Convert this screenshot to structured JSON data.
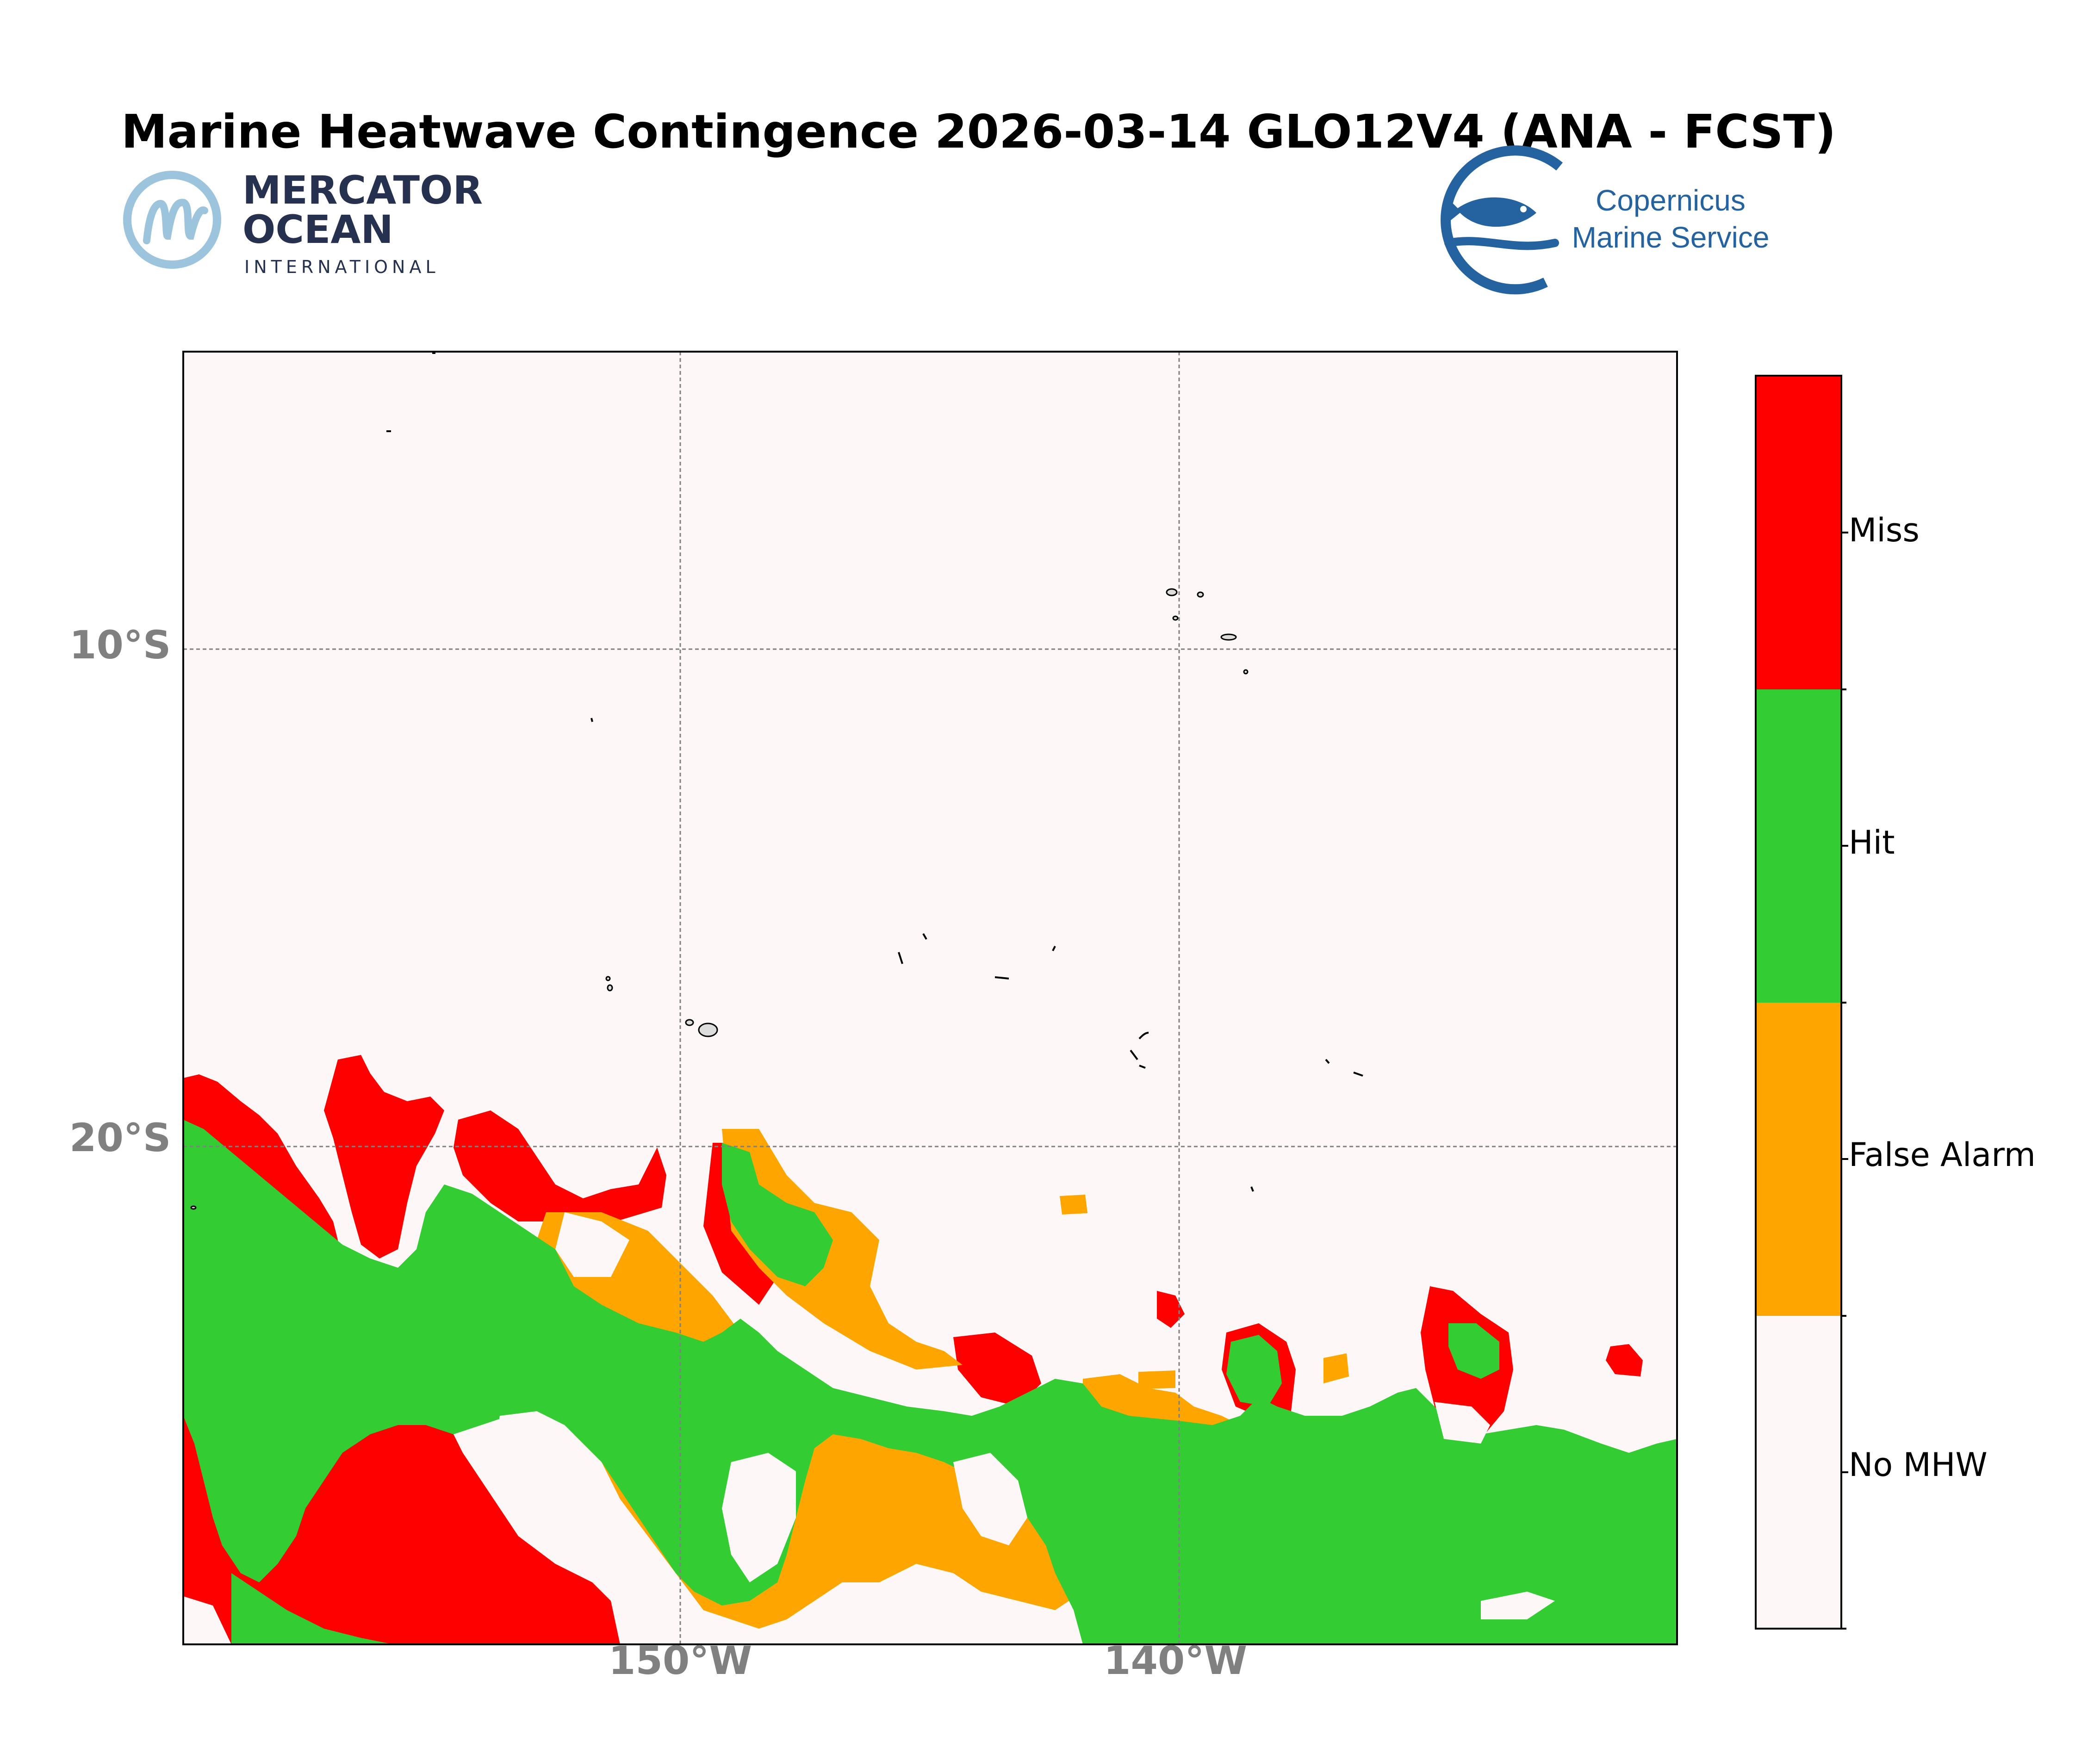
{
  "title": "Marine Heatwave Contingence 2026-03-14 GLO12V4 (ANA - FCST)",
  "logos": {
    "mercator": {
      "line1": "MERCATOR",
      "line2": "OCEAN",
      "line3": "INTERNATIONAL"
    },
    "copernicus": {
      "line1": "Copernicus",
      "line2": "Marine Service"
    }
  },
  "axes": {
    "lat_ticks": [
      "10°S",
      "20°S"
    ],
    "lon_ticks": [
      "150°W",
      "140°W"
    ]
  },
  "colorbar": {
    "categories": [
      {
        "label": "Miss",
        "color": "#ff0000"
      },
      {
        "label": "Hit",
        "color": "#33cc33"
      },
      {
        "label": "False Alarm",
        "color": "#ffa500"
      },
      {
        "label": "No MHW",
        "color": "#fdf8f7"
      }
    ]
  },
  "colors": {
    "background": "#fdf8f7",
    "miss": "#ff0000",
    "hit": "#33cc33",
    "false_alarm": "#ffa500",
    "no_mhw": "#fdf8f7",
    "gridline": "#808080",
    "tick_text": "#808080",
    "mercator_blue": "#9cc4dd",
    "mercator_navy": "#26304f",
    "copernicus_blue": "#2462a0"
  }
}
